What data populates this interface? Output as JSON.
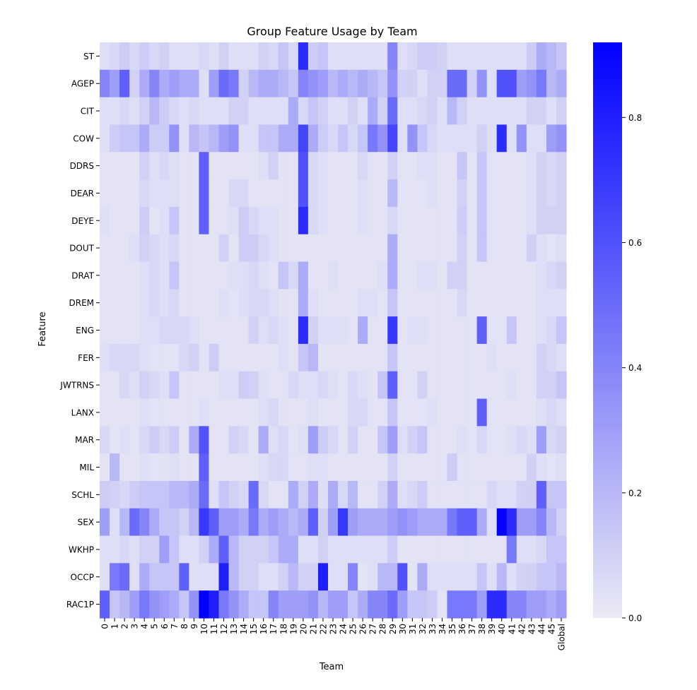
{
  "chart_data": {
    "type": "heatmap",
    "title": "Group Feature Usage by Team",
    "xlabel": "Team",
    "ylabel": "Feature",
    "x_categories": [
      "0",
      "1",
      "2",
      "3",
      "4",
      "5",
      "6",
      "7",
      "8",
      "9",
      "10",
      "11",
      "12",
      "13",
      "14",
      "15",
      "16",
      "17",
      "18",
      "19",
      "20",
      "21",
      "22",
      "23",
      "24",
      "25",
      "26",
      "27",
      "28",
      "29",
      "30",
      "31",
      "32",
      "33",
      "34",
      "35",
      "36",
      "37",
      "38",
      "39",
      "40",
      "41",
      "42",
      "43",
      "44",
      "45",
      "Global"
    ],
    "y_categories": [
      "ST",
      "AGEP",
      "CIT",
      "COW",
      "DDRS",
      "DEAR",
      "DEYE",
      "DOUT",
      "DRAT",
      "DREM",
      "ENG",
      "FER",
      "JWTRNS",
      "LANX",
      "MAR",
      "MIL",
      "SCHL",
      "SEX",
      "WKHP",
      "OCCP",
      "RAC1P"
    ],
    "colormap": {
      "low": "#ebebf5",
      "high": "#0000ff"
    },
    "colorbar": {
      "range": [
        0,
        0.92
      ],
      "ticks": [
        "0.0",
        "0.2",
        "0.4",
        "0.6",
        "0.8"
      ]
    },
    "values": [
      [
        0.05,
        0.08,
        0.12,
        0.08,
        0.12,
        0.08,
        0.1,
        0.05,
        0.05,
        0.05,
        0.08,
        0.05,
        0.1,
        0.05,
        0.05,
        0.05,
        0.1,
        0.08,
        0.15,
        0.08,
        0.75,
        0.12,
        0.15,
        0.05,
        0.05,
        0.05,
        0.05,
        0.05,
        0.05,
        0.4,
        0.05,
        0.08,
        0.12,
        0.12,
        0.1,
        0.05,
        0.05,
        0.05,
        0.05,
        0.05,
        0.05,
        0.05,
        0.05,
        0.12,
        0.25,
        0.2,
        0.15
      ],
      [
        0.4,
        0.3,
        0.55,
        0.1,
        0.25,
        0.4,
        0.25,
        0.3,
        0.25,
        0.25,
        0.05,
        0.3,
        0.5,
        0.45,
        0.1,
        0.2,
        0.25,
        0.25,
        0.2,
        0.15,
        0.4,
        0.35,
        0.3,
        0.2,
        0.25,
        0.2,
        0.25,
        0.2,
        0.15,
        0.35,
        0.1,
        0.1,
        0.05,
        0.1,
        0.1,
        0.5,
        0.5,
        0.1,
        0.35,
        0.05,
        0.6,
        0.6,
        0.3,
        0.35,
        0.45,
        0.2,
        0.25
      ],
      [
        0.05,
        0.05,
        0.08,
        0.05,
        0.1,
        0.2,
        0.12,
        0.08,
        0.05,
        0.08,
        0.05,
        0.05,
        0.05,
        0.1,
        0.1,
        0.05,
        0.05,
        0.05,
        0.05,
        0.25,
        0.08,
        0.15,
        0.1,
        0.05,
        0.05,
        0.1,
        0.05,
        0.25,
        0.1,
        0.5,
        0.05,
        0.05,
        0.08,
        0.1,
        0.05,
        0.2,
        0.1,
        0.05,
        0.05,
        0.05,
        0.05,
        0.05,
        0.05,
        0.1,
        0.1,
        0.05,
        0.1
      ],
      [
        0.05,
        0.12,
        0.15,
        0.15,
        0.25,
        0.12,
        0.12,
        0.35,
        0.05,
        0.2,
        0.15,
        0.2,
        0.3,
        0.35,
        0.05,
        0.05,
        0.15,
        0.15,
        0.25,
        0.25,
        0.65,
        0.25,
        0.12,
        0.08,
        0.15,
        0.08,
        0.15,
        0.45,
        0.35,
        0.65,
        0.05,
        0.35,
        0.15,
        0.08,
        0.05,
        0.05,
        0.05,
        0.05,
        0.1,
        0.05,
        0.75,
        0.05,
        0.35,
        0.05,
        0.05,
        0.3,
        0.35
      ],
      [
        0.03,
        0.03,
        0.03,
        0.03,
        0.1,
        0.05,
        0.08,
        0.05,
        0.03,
        0.03,
        0.55,
        0.03,
        0.03,
        0.03,
        0.03,
        0.03,
        0.05,
        0.1,
        0.03,
        0.03,
        0.6,
        0.08,
        0.05,
        0.03,
        0.03,
        0.03,
        0.08,
        0.03,
        0.03,
        0.1,
        0.03,
        0.03,
        0.05,
        0.05,
        0.03,
        0.03,
        0.15,
        0.03,
        0.15,
        0.03,
        0.03,
        0.03,
        0.03,
        0.05,
        0.1,
        0.08,
        0.1
      ],
      [
        0.03,
        0.03,
        0.03,
        0.03,
        0.08,
        0.05,
        0.05,
        0.05,
        0.03,
        0.03,
        0.55,
        0.03,
        0.03,
        0.08,
        0.08,
        0.03,
        0.03,
        0.03,
        0.03,
        0.03,
        0.6,
        0.08,
        0.05,
        0.03,
        0.03,
        0.03,
        0.05,
        0.03,
        0.03,
        0.2,
        0.03,
        0.03,
        0.03,
        0.05,
        0.03,
        0.03,
        0.1,
        0.03,
        0.15,
        0.03,
        0.03,
        0.03,
        0.03,
        0.05,
        0.1,
        0.08,
        0.1
      ],
      [
        0.05,
        0.03,
        0.03,
        0.03,
        0.12,
        0.03,
        0.05,
        0.15,
        0.03,
        0.03,
        0.55,
        0.03,
        0.03,
        0.05,
        0.12,
        0.08,
        0.05,
        0.05,
        0.03,
        0.03,
        0.75,
        0.08,
        0.05,
        0.03,
        0.03,
        0.03,
        0.05,
        0.03,
        0.03,
        0.08,
        0.03,
        0.03,
        0.03,
        0.03,
        0.03,
        0.03,
        0.12,
        0.03,
        0.15,
        0.03,
        0.03,
        0.03,
        0.03,
        0.05,
        0.1,
        0.1,
        0.1
      ],
      [
        0.03,
        0.03,
        0.03,
        0.05,
        0.1,
        0.08,
        0.05,
        0.08,
        0.03,
        0.03,
        0.03,
        0.03,
        0.1,
        0.03,
        0.12,
        0.12,
        0.08,
        0.05,
        0.03,
        0.03,
        0.03,
        0.03,
        0.03,
        0.03,
        0.03,
        0.03,
        0.03,
        0.03,
        0.03,
        0.25,
        0.03,
        0.03,
        0.03,
        0.03,
        0.03,
        0.03,
        0.1,
        0.03,
        0.15,
        0.03,
        0.03,
        0.03,
        0.03,
        0.1,
        0.05,
        0.03,
        0.05
      ],
      [
        0.03,
        0.03,
        0.03,
        0.03,
        0.05,
        0.08,
        0.05,
        0.15,
        0.03,
        0.03,
        0.03,
        0.03,
        0.03,
        0.05,
        0.05,
        0.08,
        0.05,
        0.03,
        0.15,
        0.08,
        0.25,
        0.03,
        0.03,
        0.05,
        0.03,
        0.03,
        0.03,
        0.03,
        0.05,
        0.25,
        0.03,
        0.03,
        0.05,
        0.05,
        0.03,
        0.1,
        0.1,
        0.03,
        0.03,
        0.03,
        0.03,
        0.03,
        0.03,
        0.03,
        0.05,
        0.08,
        0.1
      ],
      [
        0.03,
        0.03,
        0.03,
        0.03,
        0.05,
        0.08,
        0.05,
        0.08,
        0.03,
        0.03,
        0.03,
        0.03,
        0.05,
        0.03,
        0.05,
        0.08,
        0.08,
        0.05,
        0.03,
        0.03,
        0.25,
        0.05,
        0.03,
        0.03,
        0.03,
        0.03,
        0.05,
        0.05,
        0.03,
        0.15,
        0.03,
        0.03,
        0.03,
        0.03,
        0.03,
        0.03,
        0.08,
        0.03,
        0.03,
        0.03,
        0.03,
        0.03,
        0.03,
        0.03,
        0.05,
        0.05,
        0.05
      ],
      [
        0.03,
        0.03,
        0.03,
        0.03,
        0.05,
        0.05,
        0.08,
        0.08,
        0.08,
        0.05,
        0.03,
        0.03,
        0.03,
        0.03,
        0.03,
        0.1,
        0.05,
        0.08,
        0.05,
        0.03,
        0.75,
        0.1,
        0.05,
        0.05,
        0.05,
        0.03,
        0.25,
        0.03,
        0.03,
        0.7,
        0.03,
        0.05,
        0.05,
        0.03,
        0.03,
        0.03,
        0.03,
        0.03,
        0.55,
        0.03,
        0.03,
        0.15,
        0.03,
        0.03,
        0.05,
        0.08,
        0.15
      ],
      [
        0.05,
        0.08,
        0.08,
        0.08,
        0.05,
        0.03,
        0.03,
        0.03,
        0.08,
        0.1,
        0.03,
        0.12,
        0.03,
        0.03,
        0.03,
        0.03,
        0.03,
        0.03,
        0.05,
        0.03,
        0.15,
        0.2,
        0.03,
        0.03,
        0.03,
        0.03,
        0.03,
        0.03,
        0.03,
        0.15,
        0.03,
        0.03,
        0.03,
        0.03,
        0.03,
        0.03,
        0.03,
        0.03,
        0.03,
        0.05,
        0.03,
        0.03,
        0.03,
        0.03,
        0.1,
        0.08,
        0.05
      ],
      [
        0.03,
        0.03,
        0.08,
        0.05,
        0.1,
        0.08,
        0.05,
        0.15,
        0.03,
        0.03,
        0.03,
        0.03,
        0.05,
        0.05,
        0.12,
        0.1,
        0.05,
        0.03,
        0.03,
        0.08,
        0.05,
        0.05,
        0.08,
        0.05,
        0.03,
        0.08,
        0.05,
        0.03,
        0.15,
        0.55,
        0.03,
        0.03,
        0.1,
        0.03,
        0.03,
        0.03,
        0.03,
        0.03,
        0.03,
        0.03,
        0.03,
        0.05,
        0.03,
        0.03,
        0.1,
        0.1,
        0.15
      ],
      [
        0.03,
        0.03,
        0.03,
        0.03,
        0.05,
        0.03,
        0.03,
        0.03,
        0.03,
        0.03,
        0.05,
        0.03,
        0.03,
        0.03,
        0.03,
        0.03,
        0.05,
        0.08,
        0.03,
        0.03,
        0.03,
        0.05,
        0.03,
        0.03,
        0.03,
        0.08,
        0.08,
        0.03,
        0.03,
        0.15,
        0.03,
        0.03,
        0.03,
        0.05,
        0.03,
        0.03,
        0.03,
        0.03,
        0.55,
        0.03,
        0.03,
        0.03,
        0.03,
        0.03,
        0.05,
        0.08,
        0.05
      ],
      [
        0.08,
        0.03,
        0.05,
        0.03,
        0.08,
        0.12,
        0.08,
        0.12,
        0.03,
        0.25,
        0.6,
        0.03,
        0.03,
        0.1,
        0.08,
        0.03,
        0.25,
        0.05,
        0.08,
        0.03,
        0.05,
        0.3,
        0.12,
        0.08,
        0.03,
        0.1,
        0.03,
        0.03,
        0.15,
        0.3,
        0.05,
        0.1,
        0.15,
        0.03,
        0.03,
        0.03,
        0.05,
        0.03,
        0.08,
        0.03,
        0.03,
        0.05,
        0.08,
        0.05,
        0.3,
        0.08,
        0.1
      ],
      [
        0.03,
        0.2,
        0.03,
        0.03,
        0.05,
        0.03,
        0.03,
        0.05,
        0.03,
        0.03,
        0.55,
        0.03,
        0.03,
        0.03,
        0.03,
        0.03,
        0.05,
        0.08,
        0.08,
        0.03,
        0.03,
        0.05,
        0.05,
        0.03,
        0.03,
        0.03,
        0.03,
        0.03,
        0.03,
        0.1,
        0.03,
        0.03,
        0.03,
        0.03,
        0.03,
        0.12,
        0.03,
        0.03,
        0.03,
        0.03,
        0.03,
        0.03,
        0.03,
        0.1,
        0.05,
        0.03,
        0.05
      ],
      [
        0.12,
        0.1,
        0.08,
        0.12,
        0.15,
        0.15,
        0.15,
        0.2,
        0.2,
        0.25,
        0.5,
        0.05,
        0.15,
        0.1,
        0.08,
        0.5,
        0.08,
        0.03,
        0.03,
        0.25,
        0.1,
        0.25,
        0.05,
        0.25,
        0.08,
        0.2,
        0.03,
        0.03,
        0.1,
        0.25,
        0.05,
        0.08,
        0.12,
        0.03,
        0.03,
        0.03,
        0.03,
        0.03,
        0.03,
        0.08,
        0.05,
        0.05,
        0.1,
        0.1,
        0.55,
        0.15,
        0.15
      ],
      [
        0.3,
        0.05,
        0.2,
        0.5,
        0.4,
        0.25,
        0.15,
        0.15,
        0.1,
        0.2,
        0.7,
        0.55,
        0.3,
        0.3,
        0.25,
        0.45,
        0.25,
        0.3,
        0.25,
        0.2,
        0.25,
        0.55,
        0.1,
        0.3,
        0.7,
        0.3,
        0.25,
        0.25,
        0.25,
        0.3,
        0.35,
        0.3,
        0.25,
        0.25,
        0.25,
        0.45,
        0.55,
        0.55,
        0.25,
        0.05,
        0.9,
        0.75,
        0.3,
        0.3,
        0.4,
        0.2,
        0.1
      ],
      [
        0.05,
        0.05,
        0.08,
        0.05,
        0.1,
        0.1,
        0.3,
        0.15,
        0.05,
        0.05,
        0.1,
        0.25,
        0.55,
        0.2,
        0.1,
        0.1,
        0.1,
        0.15,
        0.25,
        0.25,
        0.05,
        0.05,
        0.1,
        0.05,
        0.05,
        0.05,
        0.05,
        0.05,
        0.05,
        0.12,
        0.03,
        0.03,
        0.03,
        0.03,
        0.03,
        0.03,
        0.03,
        0.03,
        0.03,
        0.03,
        0.03,
        0.45,
        0.05,
        0.05,
        0.08,
        0.15,
        0.15
      ],
      [
        0.05,
        0.45,
        0.5,
        0.05,
        0.25,
        0.15,
        0.15,
        0.15,
        0.55,
        0.05,
        0.05,
        0.05,
        0.8,
        0.2,
        0.1,
        0.1,
        0.05,
        0.05,
        0.1,
        0.2,
        0.1,
        0.1,
        0.8,
        0.05,
        0.05,
        0.4,
        0.03,
        0.05,
        0.2,
        0.2,
        0.6,
        0.03,
        0.25,
        0.05,
        0.05,
        0.05,
        0.05,
        0.05,
        0.15,
        0.05,
        0.2,
        0.05,
        0.1,
        0.1,
        0.15,
        0.15,
        0.2
      ],
      [
        0.55,
        0.15,
        0.2,
        0.3,
        0.45,
        0.35,
        0.3,
        0.25,
        0.15,
        0.35,
        0.92,
        0.8,
        0.45,
        0.35,
        0.25,
        0.15,
        0.15,
        0.4,
        0.3,
        0.3,
        0.3,
        0.35,
        0.2,
        0.3,
        0.3,
        0.15,
        0.25,
        0.4,
        0.4,
        0.5,
        0.3,
        0.15,
        0.15,
        0.12,
        0.03,
        0.45,
        0.45,
        0.45,
        0.3,
        0.75,
        0.75,
        0.4,
        0.4,
        0.3,
        0.3,
        0.25,
        0.3
      ]
    ]
  }
}
